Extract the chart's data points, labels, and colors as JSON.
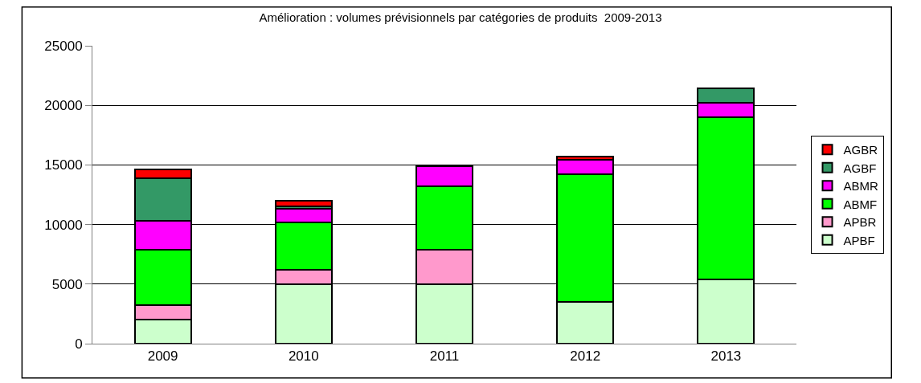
{
  "chart_data": {
    "type": "bar",
    "title": "Amélioration : volumes prévisionnels par catégories de produits  2009-2013",
    "categories": [
      "2009",
      "2010",
      "2011",
      "2012",
      "2013"
    ],
    "stacked": true,
    "series": [
      {
        "name": "APBF",
        "color": "#ccffcc",
        "values": [
          2000,
          5000,
          5000,
          3500,
          5400
        ]
      },
      {
        "name": "APBR",
        "color": "#ff99cc",
        "values": [
          1250,
          1200,
          2900,
          null,
          null
        ]
      },
      {
        "name": "ABMF",
        "color": "#00ff00",
        "values": [
          4650,
          4000,
          5300,
          10700,
          13600
        ]
      },
      {
        "name": "ABMR",
        "color": "#ff00ff",
        "values": [
          2400,
          1100,
          1700,
          1200,
          1200
        ]
      },
      {
        "name": "AGBF",
        "color": "#339966",
        "values": [
          3600,
          200,
          null,
          null,
          1200
        ]
      },
      {
        "name": "AGBR",
        "color": "#ff0000",
        "values": [
          700,
          500,
          null,
          300,
          null
        ]
      }
    ],
    "ylim": [
      0,
      25000
    ],
    "yticks": [
      0,
      5000,
      10000,
      15000,
      20000,
      25000
    ],
    "grid": "y",
    "legend": "right"
  }
}
